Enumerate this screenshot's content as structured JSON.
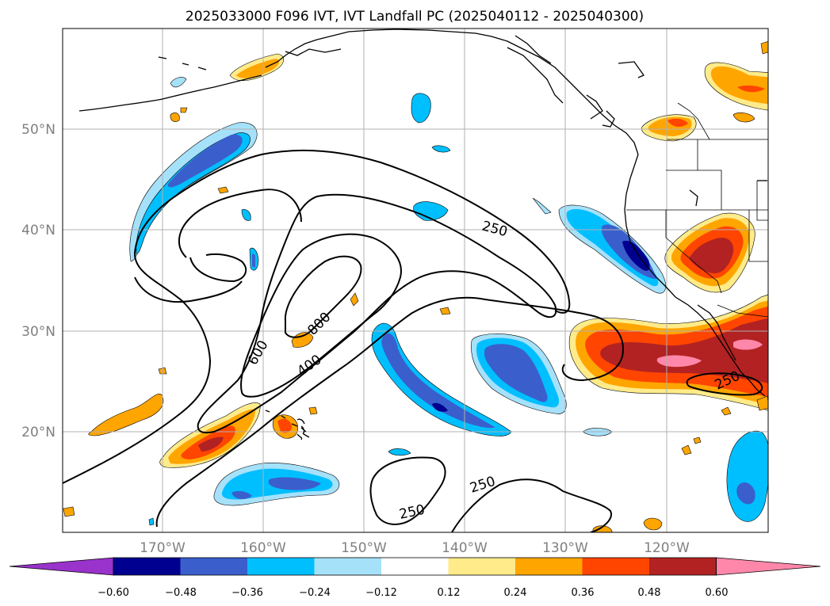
{
  "title": "2025033000 F096 IVT, IVT Landfall PC (2025040112 - 2025040300)",
  "lat_labels": [
    "50°N",
    "40°N",
    "30°N",
    "20°N"
  ],
  "lon_labels": [
    "170°W",
    "160°W",
    "150°W",
    "140°W",
    "130°W",
    "120°W"
  ],
  "contour_labels": [
    "250",
    "250",
    "250",
    "250",
    "600",
    "800",
    "400"
  ],
  "colorbar": {
    "tick_labels": [
      "−0.60",
      "−0.48",
      "−0.36",
      "−0.24",
      "−0.12",
      "0.12",
      "0.24",
      "0.36",
      "0.48",
      "0.60"
    ],
    "bins": [
      {
        "range": "below -0.60",
        "color": "#9933cc"
      },
      {
        "range": "-0.60 to -0.48",
        "color": "#000090"
      },
      {
        "range": "-0.48 to -0.36",
        "color": "#3a5fcd"
      },
      {
        "range": "-0.36 to -0.24",
        "color": "#00bfff"
      },
      {
        "range": "-0.24 to -0.12",
        "color": "#a6e1fa"
      },
      {
        "range": "-0.12 to 0.12",
        "color": "#ffffff"
      },
      {
        "range": "0.12 to 0.24",
        "color": "#ffeb8a"
      },
      {
        "range": "0.24 to 0.36",
        "color": "#ffa500"
      },
      {
        "range": "0.36 to 0.48",
        "color": "#ff4500"
      },
      {
        "range": "0.48 to 0.60",
        "color": "#b22222"
      },
      {
        "range": "above 0.60",
        "color": "#ff88aa"
      }
    ]
  },
  "colors": {
    "grid": "#b0b0b0",
    "axis_label": "#808080",
    "contour": "#000000"
  }
}
